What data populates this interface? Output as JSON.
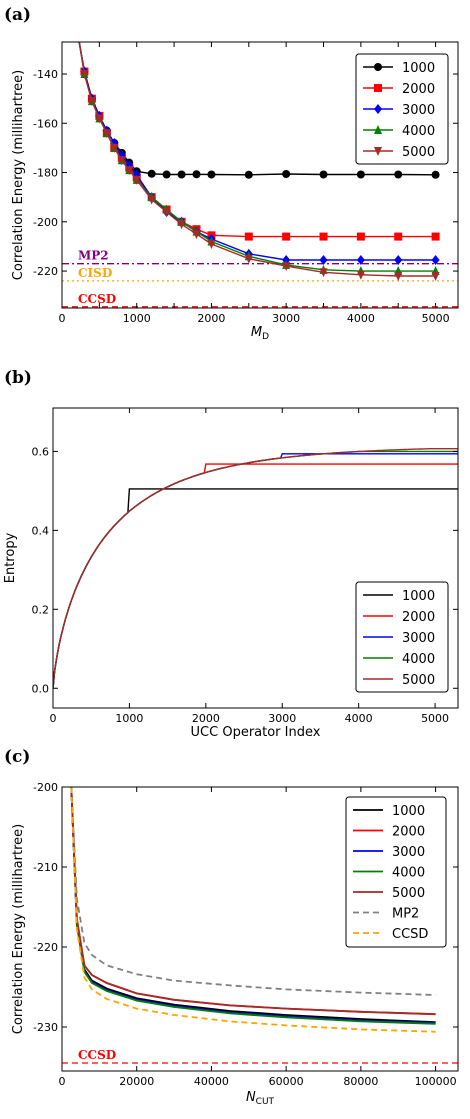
{
  "chart_data": [
    {
      "id": "a",
      "panel_label": "(a)",
      "type": "line",
      "xlabel": "M",
      "xlabel_sub": "D",
      "ylabel": "Correlation Energy (millihartree)",
      "xlim": [
        0,
        5300
      ],
      "ylim": [
        -235,
        -127
      ],
      "xticks": [
        0,
        500,
        1000,
        1500,
        2000,
        2500,
        3000,
        3500,
        4000,
        4500,
        5000
      ],
      "xtick_labels": [
        "0",
        "",
        "1000",
        "",
        "2000",
        "",
        "3000",
        "",
        "4000",
        "",
        "5000"
      ],
      "yticks": [
        -220,
        -200,
        -180,
        -160,
        -140
      ],
      "ytick_labels": [
        "-220",
        "-200",
        "-180",
        "-160",
        "-140"
      ],
      "legend_position": "top-right",
      "series": [
        {
          "name": "1000",
          "color": "#000000",
          "marker": "circle",
          "x": [
            300,
            400,
            500,
            600,
            700,
            800,
            900,
            1000,
            1200,
            1400,
            1600,
            1800,
            2000,
            2500,
            3000,
            3500,
            4000,
            4500,
            5000
          ],
          "y": [
            -139,
            -150,
            -157,
            -163,
            -168,
            -172,
            -176,
            -179.5,
            -180.5,
            -180.8,
            -180.8,
            -180.7,
            -180.8,
            -180.9,
            -180.6,
            -180.8,
            -180.8,
            -180.8,
            -180.9
          ]
        },
        {
          "name": "2000",
          "color": "#ff0000",
          "marker": "square",
          "x": [
            300,
            400,
            500,
            600,
            700,
            800,
            900,
            1000,
            1200,
            1400,
            1600,
            1800,
            2000,
            2500,
            3000,
            3500,
            4000,
            4500,
            5000
          ],
          "y": [
            -139,
            -150,
            -157,
            -164,
            -170,
            -174,
            -178,
            -182,
            -190,
            -195,
            -200,
            -203,
            -205.5,
            -206,
            -206,
            -206,
            -206,
            -206,
            -206
          ]
        },
        {
          "name": "3000",
          "color": "#0000ff",
          "marker": "diamond",
          "x": [
            300,
            400,
            500,
            600,
            700,
            800,
            900,
            1000,
            1200,
            1400,
            1600,
            1800,
            2000,
            2500,
            3000,
            3500,
            4000,
            4500,
            5000
          ],
          "y": [
            -139,
            -150,
            -157,
            -163,
            -168,
            -173,
            -177,
            -181,
            -190,
            -196,
            -200,
            -204,
            -207,
            -213,
            -215.5,
            -215.5,
            -215.5,
            -215.5,
            -215.5
          ]
        },
        {
          "name": "4000",
          "color": "#008000",
          "marker": "triangle-up",
          "x": [
            300,
            400,
            500,
            600,
            700,
            800,
            900,
            1000,
            1200,
            1400,
            1600,
            1800,
            2000,
            2500,
            3000,
            3500,
            4000,
            4500,
            5000
          ],
          "y": [
            -140,
            -151,
            -158,
            -164,
            -170,
            -175,
            -179,
            -183,
            -190,
            -195,
            -200,
            -204,
            -208,
            -214,
            -217.5,
            -219.5,
            -220,
            -220,
            -220
          ]
        },
        {
          "name": "5000",
          "color": "#a52a2a",
          "marker": "triangle-down",
          "x": [
            300,
            400,
            500,
            600,
            700,
            800,
            900,
            1000,
            1200,
            1400,
            1600,
            1800,
            2000,
            2500,
            3000,
            3500,
            4000,
            4500,
            5000
          ],
          "y": [
            -140,
            -151,
            -158,
            -164,
            -170,
            -175,
            -179,
            -183,
            -191,
            -196,
            -201,
            -205,
            -209,
            -215,
            -218,
            -220.5,
            -221.5,
            -222,
            -222
          ]
        }
      ],
      "reference_lines": [
        {
          "label": "MP2",
          "y": -217,
          "color": "#800080",
          "style": "dashdot"
        },
        {
          "label": "CISD",
          "y": -224,
          "color": "#ffa500",
          "style": "dotted"
        },
        {
          "label": "CCSD",
          "y": -234.5,
          "color": "#ff0000",
          "style": "dashed"
        }
      ]
    },
    {
      "id": "b",
      "panel_label": "(b)",
      "type": "line",
      "xlabel": "UCC Operator Index",
      "ylabel": "Entropy",
      "xlim": [
        0,
        5300
      ],
      "ylim": [
        -0.05,
        0.71
      ],
      "xticks": [
        0,
        1000,
        2000,
        3000,
        4000,
        5000
      ],
      "xtick_labels": [
        "0",
        "1000",
        "2000",
        "3000",
        "4000",
        "5000"
      ],
      "yticks": [
        0.0,
        0.2,
        0.4,
        0.6
      ],
      "ytick_labels": [
        "0.0",
        "0.2",
        "0.4",
        "0.6"
      ],
      "legend_position": "bottom-right",
      "series": [
        {
          "name": "1000",
          "color": "#000000",
          "cap": 1000,
          "plateau": 0.505
        },
        {
          "name": "2000",
          "color": "#ff0000",
          "cap": 2000,
          "plateau": 0.568
        },
        {
          "name": "3000",
          "color": "#0000ff",
          "cap": 3000,
          "plateau": 0.594
        },
        {
          "name": "4000",
          "color": "#008000",
          "cap": 4000,
          "plateau": 0.6
        },
        {
          "name": "5000",
          "color": "#a52a2a",
          "cap": 5000,
          "plateau": 0.607
        }
      ]
    },
    {
      "id": "c",
      "panel_label": "(c)",
      "type": "line",
      "xlabel": "N",
      "xlabel_sub": "CUT",
      "ylabel": "Correlation Energy (millihartree)",
      "xlim": [
        0,
        106000
      ],
      "ylim": [
        -235.5,
        -200
      ],
      "xticks": [
        0,
        20000,
        40000,
        60000,
        80000,
        100000
      ],
      "xtick_labels": [
        "0",
        "20000",
        "40000",
        "60000",
        "80000",
        "100000"
      ],
      "yticks": [
        -230,
        -220,
        -210,
        -200
      ],
      "ytick_labels": [
        "-230",
        "-220",
        "-210",
        "-200"
      ],
      "legend_position": "top-right",
      "series": [
        {
          "name": "1000",
          "color": "#000000",
          "style": "solid",
          "x": [
            2500,
            4000,
            6000,
            8000,
            12000,
            20000,
            30000,
            45000,
            60000,
            80000,
            100000
          ],
          "y": [
            -200,
            -217,
            -222.8,
            -224.2,
            -225.2,
            -226.4,
            -227.2,
            -228,
            -228.5,
            -229,
            -229.4
          ]
        },
        {
          "name": "2000",
          "color": "#ff0000",
          "style": "solid",
          "x": [
            2500,
            4000,
            6000,
            8000,
            12000,
            20000,
            30000,
            45000,
            60000,
            80000,
            100000
          ],
          "y": [
            -200,
            -216.5,
            -222.3,
            -223.5,
            -224.5,
            -225.8,
            -226.6,
            -227.3,
            -227.7,
            -228.1,
            -228.4
          ]
        },
        {
          "name": "3000",
          "color": "#0000ff",
          "style": "solid",
          "x": [
            2500,
            4000,
            6000,
            8000,
            12000,
            20000,
            30000,
            45000,
            60000,
            80000,
            100000
          ],
          "y": [
            -200,
            -217.2,
            -223,
            -224.4,
            -225.4,
            -226.6,
            -227.4,
            -228.2,
            -228.7,
            -229.2,
            -229.5
          ]
        },
        {
          "name": "4000",
          "color": "#008000",
          "style": "solid",
          "x": [
            2500,
            4000,
            6000,
            8000,
            12000,
            20000,
            30000,
            45000,
            60000,
            80000,
            100000
          ],
          "y": [
            -200,
            -217.3,
            -223.1,
            -224.5,
            -225.5,
            -226.7,
            -227.5,
            -228.3,
            -228.8,
            -229.3,
            -229.6
          ]
        },
        {
          "name": "5000",
          "color": "#a52a2a",
          "style": "solid",
          "x": [
            2500,
            4000,
            6000,
            8000,
            12000,
            20000,
            30000,
            45000,
            60000,
            80000,
            100000
          ],
          "y": [
            -200,
            -216.5,
            -222.3,
            -223.5,
            -224.5,
            -225.8,
            -226.6,
            -227.3,
            -227.7,
            -228.1,
            -228.4
          ]
        },
        {
          "name": "MP2",
          "color": "#808080",
          "style": "dashed",
          "x": [
            2500,
            4000,
            6000,
            8000,
            12000,
            20000,
            30000,
            45000,
            60000,
            80000,
            100000
          ],
          "y": [
            -200,
            -214,
            -219.5,
            -221,
            -222.3,
            -223.4,
            -224.2,
            -224.8,
            -225.3,
            -225.7,
            -226
          ]
        },
        {
          "name": "CCSD",
          "color": "#ffa500",
          "style": "dashed",
          "x": [
            2500,
            4000,
            6000,
            8000,
            12000,
            20000,
            30000,
            45000,
            60000,
            80000,
            100000
          ],
          "y": [
            -200,
            -217.8,
            -223.8,
            -225.3,
            -226.5,
            -227.7,
            -228.5,
            -229.3,
            -229.8,
            -230.3,
            -230.6
          ]
        }
      ],
      "reference_lines": [
        {
          "label": "CCSD",
          "y": -234.5,
          "color": "#ff0000",
          "style": "dashed"
        }
      ]
    }
  ]
}
